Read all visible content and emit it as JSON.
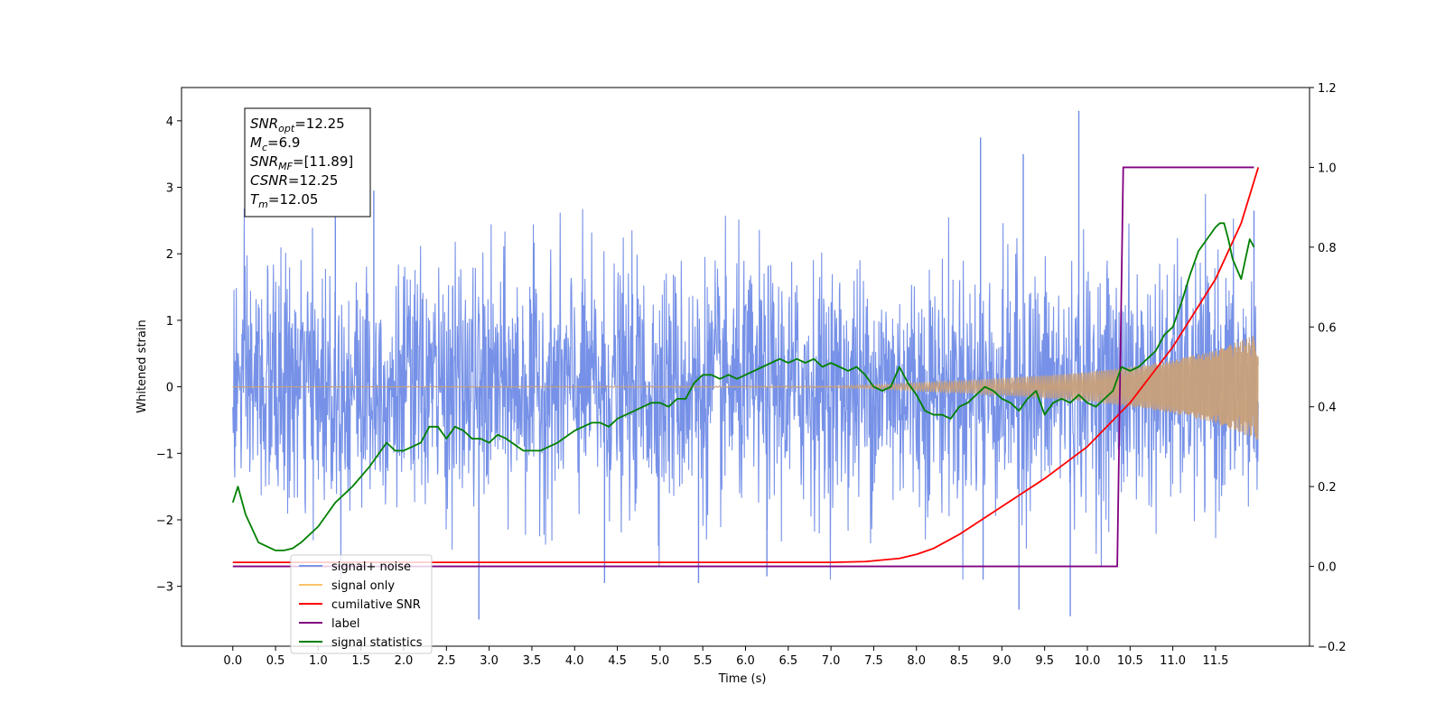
{
  "chart_data": {
    "type": "line",
    "xlabel": "Time (s)",
    "ylabel": "Whitened strain",
    "xlim": [
      -0.6,
      12.6
    ],
    "ylim": [
      -3.9,
      4.5
    ],
    "y2lim": [
      -0.2,
      1.2
    ],
    "x_ticks": [
      "0.0",
      "0.5",
      "1.0",
      "1.5",
      "2.0",
      "2.5",
      "3.0",
      "3.5",
      "4.0",
      "4.5",
      "5.0",
      "5.5",
      "6.0",
      "6.5",
      "7.0",
      "7.5",
      "8.0",
      "8.5",
      "9.0",
      "9.5",
      "10.0",
      "10.5",
      "11.0",
      "11.5"
    ],
    "y_ticks": [
      "4",
      "3",
      "2",
      "1",
      "0",
      "−1",
      "−2",
      "−3"
    ],
    "y2_ticks": [
      "1.2",
      "1.0",
      "0.8",
      "0.6",
      "0.4",
      "0.2",
      "0.0",
      "−0.2"
    ],
    "annotation": {
      "lines": [
        {
          "main": "SNR",
          "sub": "opt",
          "rest": "=12.25"
        },
        {
          "main": "M",
          "sub": "c",
          "rest": "=6.9"
        },
        {
          "main": "SNR",
          "sub": "MF",
          "rest": "=[11.89]"
        },
        {
          "main": "CSNR",
          "sub": "",
          "rest": "=12.25"
        },
        {
          "main": "T",
          "sub": "m",
          "rest": "=12.05"
        }
      ]
    },
    "legend": {
      "placement": "lower-left",
      "entries": [
        {
          "label": "signal+ noise",
          "color": "#7b96e8"
        },
        {
          "label": "signal only",
          "color": "#fcc36b"
        },
        {
          "label": "cumilative SNR",
          "color": "#ff0000"
        },
        {
          "label": "label",
          "color": "#800080"
        },
        {
          "label": "signal statistics",
          "color": "#008000"
        }
      ]
    },
    "series": [
      {
        "name": "signal+ noise",
        "axis": "left",
        "color": "#6f8be6",
        "kind": "noise",
        "t_range": [
          0.0,
          12.0
        ],
        "sigma": 0.9,
        "peaks": [
          [
            1.2,
            2.95
          ],
          [
            1.65,
            2.95
          ],
          [
            2.88,
            -3.5
          ],
          [
            4.35,
            -2.95
          ],
          [
            5.45,
            -2.95
          ],
          [
            6.25,
            -2.85
          ],
          [
            8.75,
            3.75
          ],
          [
            8.78,
            -2.9
          ],
          [
            9.2,
            -3.35
          ],
          [
            9.25,
            3.5
          ],
          [
            9.8,
            -3.45
          ],
          [
            9.9,
            4.15
          ],
          [
            11.95,
            2.65
          ]
        ]
      },
      {
        "name": "signal only",
        "axis": "left",
        "color": "#c8a07a",
        "kind": "chirp",
        "envelope": [
          [
            0.0,
            0.0
          ],
          [
            7.0,
            0.01
          ],
          [
            7.5,
            0.03
          ],
          [
            8.0,
            0.06
          ],
          [
            8.5,
            0.09
          ],
          [
            9.0,
            0.13
          ],
          [
            9.5,
            0.17
          ],
          [
            10.0,
            0.22
          ],
          [
            10.5,
            0.3
          ],
          [
            11.0,
            0.4
          ],
          [
            11.5,
            0.55
          ],
          [
            12.0,
            0.8
          ]
        ]
      },
      {
        "name": "cumilative SNR",
        "axis": "right",
        "color": "#ff0000",
        "x": [
          0.0,
          7.0,
          7.4,
          7.8,
          8.0,
          8.2,
          8.5,
          9.0,
          9.5,
          10.0,
          10.5,
          11.0,
          11.5,
          11.8,
          12.0
        ],
        "y": [
          0.01,
          0.01,
          0.012,
          0.02,
          0.03,
          0.045,
          0.08,
          0.15,
          0.22,
          0.3,
          0.41,
          0.55,
          0.72,
          0.86,
          1.0
        ]
      },
      {
        "name": "label",
        "axis": "right",
        "color": "#800080",
        "x": [
          0.0,
          10.35,
          10.42,
          11.95
        ],
        "y": [
          0.0,
          0.0,
          1.0,
          1.0
        ]
      },
      {
        "name": "signal statistics",
        "axis": "right",
        "color": "#008000",
        "x": [
          0.0,
          0.06,
          0.15,
          0.3,
          0.5,
          0.6,
          0.7,
          0.8,
          1.0,
          1.2,
          1.4,
          1.6,
          1.8,
          1.9,
          2.0,
          2.2,
          2.3,
          2.4,
          2.5,
          2.6,
          2.7,
          2.8,
          2.9,
          3.0,
          3.1,
          3.2,
          3.4,
          3.6,
          3.8,
          4.0,
          4.1,
          4.2,
          4.3,
          4.4,
          4.5,
          4.6,
          4.7,
          4.8,
          4.9,
          5.0,
          5.1,
          5.2,
          5.3,
          5.4,
          5.5,
          5.6,
          5.7,
          5.8,
          5.9,
          6.0,
          6.1,
          6.2,
          6.3,
          6.4,
          6.5,
          6.6,
          6.7,
          6.8,
          6.9,
          7.0,
          7.1,
          7.2,
          7.3,
          7.4,
          7.5,
          7.6,
          7.7,
          7.8,
          7.9,
          8.0,
          8.1,
          8.2,
          8.3,
          8.4,
          8.5,
          8.6,
          8.7,
          8.8,
          8.9,
          9.0,
          9.1,
          9.2,
          9.3,
          9.4,
          9.5,
          9.6,
          9.7,
          9.8,
          9.9,
          10.0,
          10.1,
          10.2,
          10.3,
          10.4,
          10.5,
          10.6,
          10.7,
          10.8,
          10.9,
          11.0,
          11.1,
          11.2,
          11.3,
          11.4,
          11.5,
          11.55,
          11.6,
          11.65,
          11.7,
          11.8,
          11.9,
          11.95
        ],
        "y": [
          0.16,
          0.2,
          0.13,
          0.06,
          0.04,
          0.04,
          0.045,
          0.06,
          0.1,
          0.16,
          0.2,
          0.25,
          0.31,
          0.29,
          0.29,
          0.31,
          0.35,
          0.35,
          0.32,
          0.35,
          0.34,
          0.32,
          0.32,
          0.31,
          0.33,
          0.32,
          0.29,
          0.29,
          0.31,
          0.34,
          0.35,
          0.36,
          0.36,
          0.35,
          0.37,
          0.38,
          0.39,
          0.4,
          0.41,
          0.41,
          0.4,
          0.42,
          0.42,
          0.46,
          0.48,
          0.48,
          0.47,
          0.48,
          0.47,
          0.48,
          0.49,
          0.5,
          0.51,
          0.52,
          0.51,
          0.52,
          0.51,
          0.52,
          0.5,
          0.51,
          0.5,
          0.49,
          0.5,
          0.48,
          0.45,
          0.44,
          0.45,
          0.5,
          0.46,
          0.43,
          0.39,
          0.38,
          0.38,
          0.37,
          0.4,
          0.41,
          0.43,
          0.45,
          0.44,
          0.42,
          0.41,
          0.39,
          0.42,
          0.44,
          0.38,
          0.41,
          0.42,
          0.41,
          0.43,
          0.41,
          0.4,
          0.42,
          0.44,
          0.5,
          0.49,
          0.5,
          0.52,
          0.54,
          0.58,
          0.6,
          0.66,
          0.73,
          0.79,
          0.82,
          0.85,
          0.86,
          0.86,
          0.82,
          0.77,
          0.72,
          0.82,
          0.8
        ]
      }
    ]
  }
}
